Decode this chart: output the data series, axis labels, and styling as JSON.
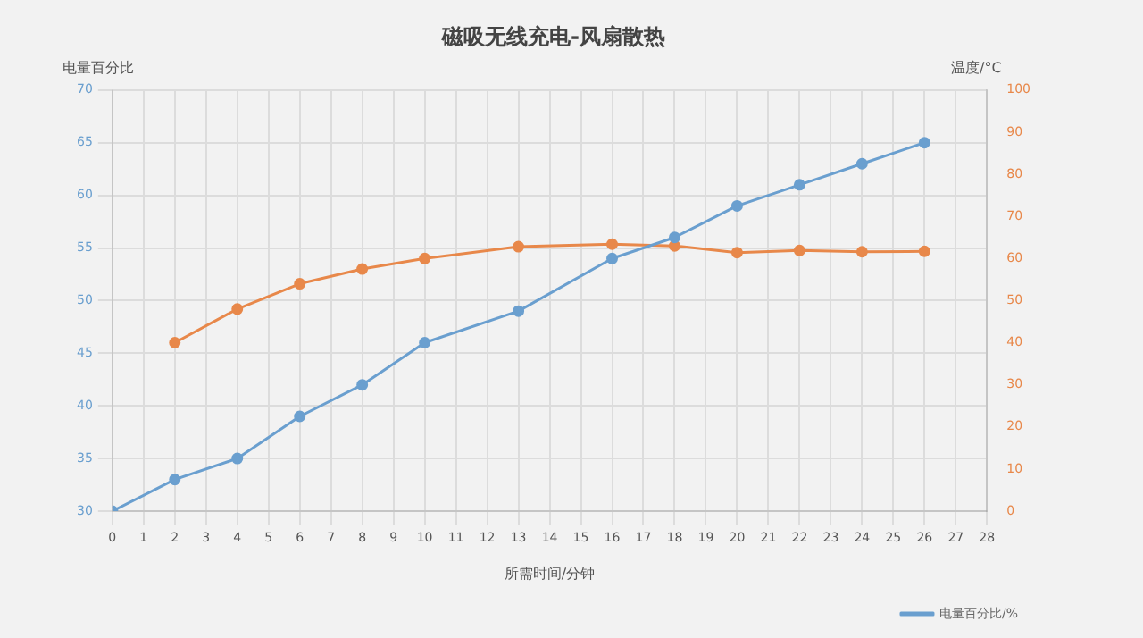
{
  "chart_data": {
    "type": "line",
    "title": "磁吸无线充电-风扇散热",
    "xlabel": "所需时间/分钟",
    "ylabel": "电量百分比",
    "y2label": "温度/°C",
    "xlim": [
      0,
      28
    ],
    "xticks": [
      0,
      1,
      2,
      3,
      4,
      5,
      6,
      7,
      8,
      9,
      10,
      11,
      12,
      13,
      14,
      15,
      16,
      17,
      18,
      19,
      20,
      21,
      22,
      23,
      24,
      25,
      26,
      27,
      28
    ],
    "ylim": [
      30,
      70
    ],
    "yticks": [
      30,
      35,
      40,
      45,
      50,
      55,
      60,
      65,
      70
    ],
    "y2lim": [
      0,
      100
    ],
    "y2ticks": [
      0,
      10,
      20,
      30,
      40,
      50,
      60,
      70,
      80,
      90,
      100
    ],
    "grid": true,
    "legend": "bottom right",
    "marker": "circle",
    "line_style": "solid",
    "series": [
      {
        "name": "电量百分比/%",
        "color": "#6a9fcf",
        "x": [
          0,
          2,
          4,
          6,
          8,
          10,
          13,
          16,
          18,
          20,
          22,
          24,
          26
        ],
        "values": [
          30,
          33,
          35,
          39,
          42,
          46,
          49,
          54,
          56,
          59,
          61,
          63,
          65
        ]
      },
      {
        "color": "#e8884a",
        "axis": "y2",
        "x": [
          2,
          4,
          6,
          8,
          10,
          13,
          16,
          18,
          20,
          22,
          24,
          26
        ],
        "values": [
          40,
          48,
          54,
          57.5,
          60,
          62.8,
          63.4,
          63,
          61.4,
          61.9,
          61.6,
          61.7
        ]
      }
    ]
  }
}
